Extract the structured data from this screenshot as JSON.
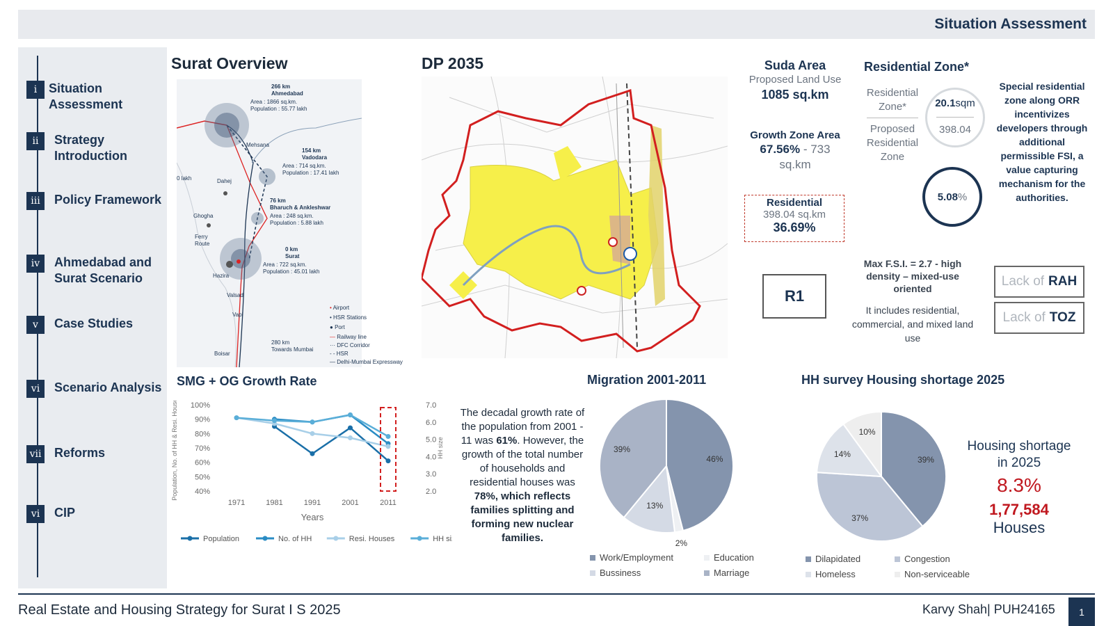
{
  "header": {
    "section_title": "Situation Assessment"
  },
  "sidebar": {
    "items": [
      {
        "num": "i",
        "label": "Situation Assessment"
      },
      {
        "num": "ii",
        "label": "Strategy Introduction"
      },
      {
        "num": "iii",
        "label": "Policy Framework"
      },
      {
        "num": "iv",
        "label": "Ahmedabad and Surat Scenario"
      },
      {
        "num": "v",
        "label": "Case Studies"
      },
      {
        "num": "vi",
        "label": "Scenario Analysis"
      },
      {
        "num": "vii",
        "label": "Reforms"
      },
      {
        "num": "vi",
        "label": "CIP"
      }
    ]
  },
  "surat_overview": {
    "title": "Surat Overview",
    "places": [
      {
        "name": "266 km\nAhmedabad",
        "detail": "Area : 1866 sq.km.\nPopulation : 55.77 lakh"
      },
      {
        "name": "154 km\nVadodara",
        "detail": "Area : 714 sq.km.\nPopulation : 17.41 lakh"
      },
      {
        "name": "76 km\nBharuch & Ankleshwar",
        "detail": "Area : 248 sq.km.\nPopulation : 5.88 lakh"
      },
      {
        "name": "0 km\nSurat",
        "detail": "Area : 722 sq.km.\nPopulation : 45.01 lakh"
      },
      {
        "name": "280 km\nTowards Mumbai",
        "detail": ""
      }
    ],
    "towns": [
      "Mehsana",
      "Dahej",
      "Ghogha",
      "Ferry Route",
      "Hazira",
      "Valsad",
      "Vapi",
      "Boisar",
      "0 lakh"
    ],
    "legend": [
      "Airport",
      "HSR Stations",
      "Port",
      "Railway line",
      "DFC Corridor",
      "HSR",
      "Delhi-Mumbai Expressway"
    ]
  },
  "dp": {
    "title": "DP 2035"
  },
  "suda": {
    "title": "Suda Area",
    "sub": "Proposed Land Use",
    "value": "1085 sq.km",
    "growth_title": "Growth Zone Area",
    "growth_pct": "67.56%",
    "growth_sep": " - ",
    "growth_value": "733 sq.km",
    "res_title": "Residential",
    "res_area": "398.04 sq.km",
    "res_pct": "36.69%"
  },
  "residential_zone": {
    "title": "Residential  Zone*",
    "label1": "Residential Zone*",
    "label2": "Proposed Residential Zone",
    "value1": "20.1",
    "value1_unit": "sqm",
    "value2": "398.04",
    "pct": "5.08",
    "pct_unit": "%",
    "special": "Special residential zone along ORR incentivizes developers through additional permissible FSI, a value capturing mechanism for the authorities."
  },
  "r1": {
    "label": "R1",
    "fsi": "Max F.S.I. = 2.7 - high density – mixed-use oriented",
    "includes": "It includes residential, commercial, and mixed land use"
  },
  "lack": [
    {
      "prefix": "Lack of",
      "term": "RAH"
    },
    {
      "prefix": "Lack of",
      "term": "TOZ"
    }
  ],
  "growth_text": {
    "part1": "The decadal growth rate of the population from 2001 - 11  was ",
    "pct1": "61%",
    "part2": ". However, the growth of the total number of households and residential houses was ",
    "pct2": "78%, which reflects families splitting and forming new nuclear families."
  },
  "housing": {
    "label": "Housing shortage in 2025",
    "pct": "8.3%",
    "count": "1,77,584",
    "unit": "Houses"
  },
  "footer": {
    "left": "Real Estate and Housing Strategy for Surat I S 2025",
    "right": "Karvy Shah| PUH24165",
    "page": "1"
  },
  "colors": {
    "navy": "#1c3452",
    "red": "#c0181f",
    "yellow": "#f6ef4a"
  },
  "chart_data": [
    {
      "type": "line",
      "title": "SMG + OG Growth Rate",
      "categories": [
        "1971",
        "1981",
        "1991",
        "2001",
        "2011"
      ],
      "xlabel": "Years",
      "ylabel": "Population, No. of HH & Resi. Houses",
      "ylabel_right": "HH size",
      "ylim": [
        0.4,
        1.0
      ],
      "y_ticks": [
        "100%",
        "90%",
        "80%",
        "70%",
        "60%",
        "50%",
        "40%"
      ],
      "ylim_right": [
        2.0,
        7.0
      ],
      "y_right_ticks": [
        "7.0",
        "6.0",
        "5.0",
        "4.0",
        "3.0",
        "2.0"
      ],
      "series": [
        {
          "name": "Population",
          "color": "#1a6fa8",
          "values": [
            null,
            0.85,
            0.66,
            0.84,
            0.61
          ]
        },
        {
          "name": "No. of HH",
          "color": "#2a8cc4",
          "values": [
            null,
            0.9,
            0.88,
            0.93,
            0.73
          ]
        },
        {
          "name": "Resi. Houses",
          "color": "#a8cfe8",
          "values": [
            0.91,
            0.87,
            0.8,
            0.77,
            0.71
          ]
        },
        {
          "name": "HH size",
          "color": "#5aaed8",
          "values": [
            0.91,
            0.89,
            0.88,
            0.93,
            0.78
          ]
        }
      ]
    },
    {
      "type": "pie",
      "title": "Migration 2001-2011",
      "categories": [
        "Work/Employment",
        "Education",
        "Bussiness",
        "Marriage"
      ],
      "values": [
        46,
        2,
        13,
        39
      ],
      "labels": [
        "46%",
        "2%",
        "13%",
        "39%"
      ],
      "colors": [
        "#8494ad",
        "#eef0f3",
        "#d4dae5",
        "#a9b3c6"
      ]
    },
    {
      "type": "pie",
      "title": "HH survey Housing shortage 2025",
      "categories": [
        "Dilapidated",
        "Congestion",
        "Homeless",
        "Non-serviceable"
      ],
      "values": [
        39,
        37,
        14,
        10
      ],
      "labels": [
        "39%",
        "37%",
        "14%",
        "10%"
      ],
      "colors": [
        "#8494ad",
        "#bcc5d6",
        "#dde2ea",
        "#eeeeee"
      ]
    }
  ]
}
